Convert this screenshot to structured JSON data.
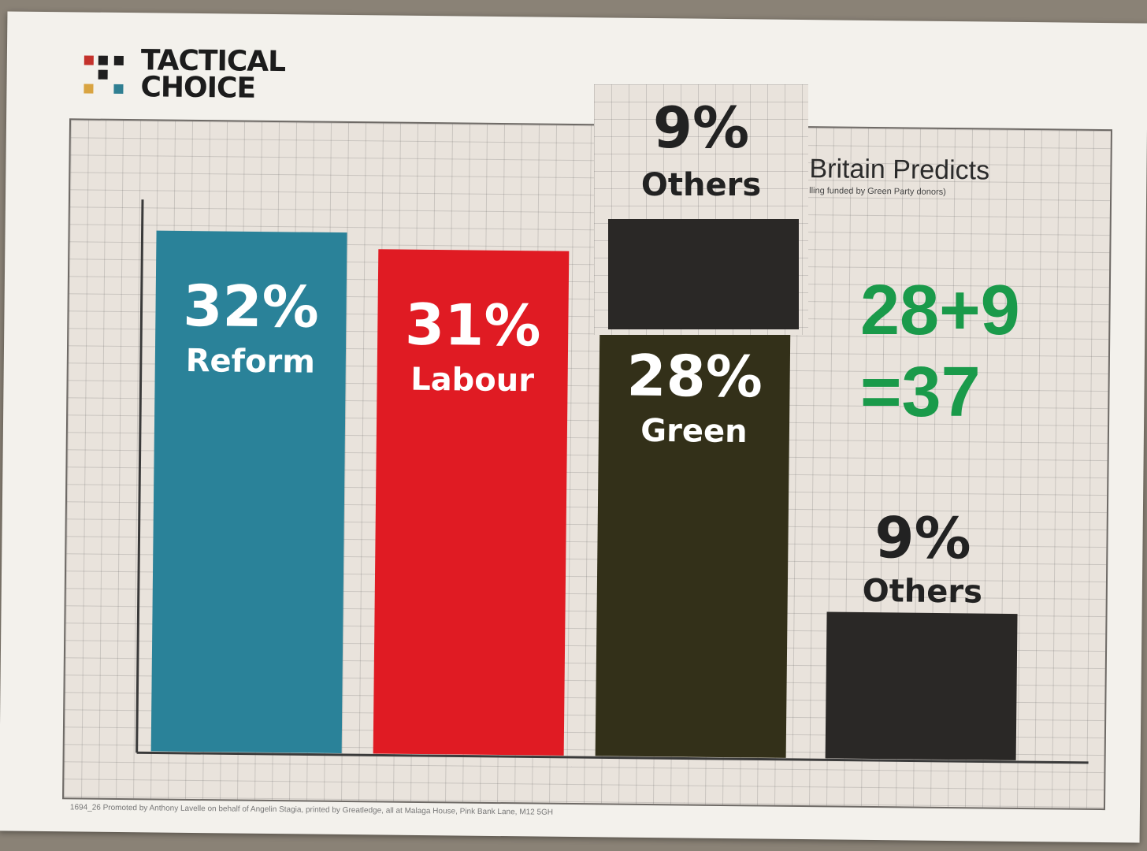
{
  "logo": {
    "line1": "TACTICAL",
    "line2": "CHOICE",
    "squares": [
      "#c4322c",
      "#1f1f1f",
      "#1f1f1f",
      "#d9a441",
      "#2f7f92"
    ]
  },
  "chart_data": {
    "type": "bar",
    "categories": [
      "Reform",
      "Labour",
      "Green",
      "Others"
    ],
    "values": [
      32,
      31,
      28,
      9
    ],
    "value_labels": [
      "32%",
      "31%",
      "28%",
      "9%"
    ],
    "colors": [
      "#2a8299",
      "#e01b23",
      "#333019",
      "#2a2826"
    ],
    "ylim": [
      0,
      40
    ],
    "grid": true
  },
  "brand": {
    "title": "Britain Predicts",
    "subtitle": "lling funded by Green Party donors)"
  },
  "imprint": "1694_26 Promoted by Anthony Lavelle on behalf of Angelin Stagia, printed by Greatledge, all at Malaga House, Pink Bank Lane, M12 5GH",
  "overlay": {
    "value": 9,
    "percent_label": "9%",
    "name": "Others",
    "annotation_line1": "28+9",
    "annotation_line2": "=37",
    "annotation_color": "#1a9a4a"
  }
}
